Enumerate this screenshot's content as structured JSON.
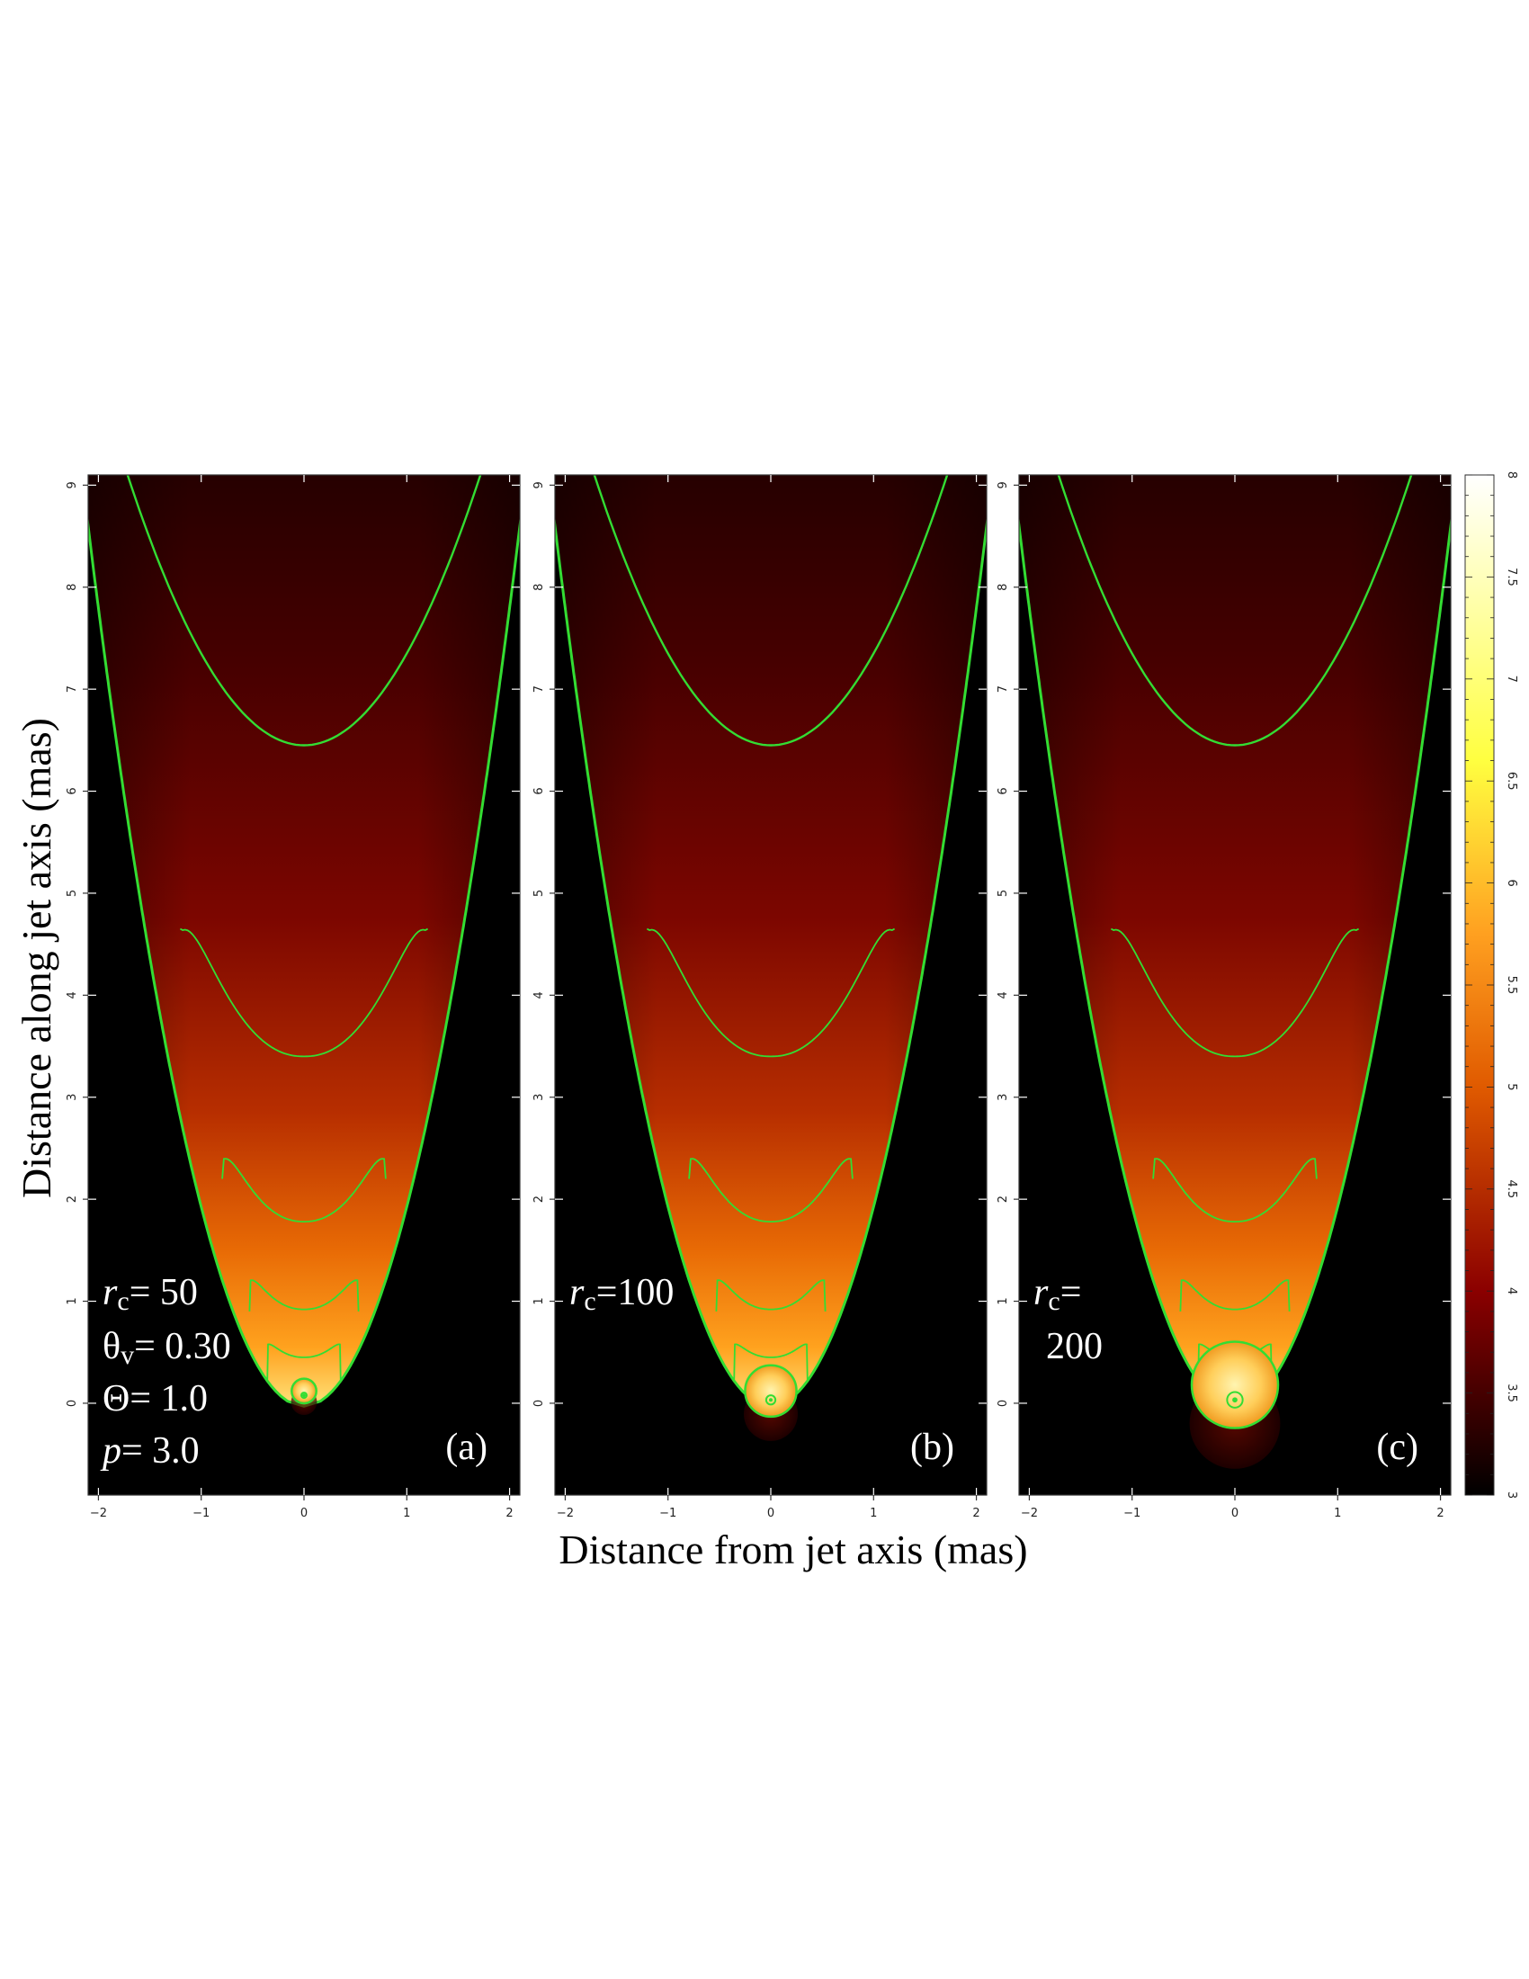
{
  "chart_data": {
    "type": "heatmap",
    "xlabel": "Distance from jet axis (mas)",
    "ylabel": "Distance along jet axis (mas)",
    "xlim": [
      -2.1,
      2.1
    ],
    "ylim": [
      -0.9,
      9.1
    ],
    "xticks": [
      "−2",
      "−1",
      "0",
      "1",
      "2"
    ],
    "yticks": [
      "0",
      "1",
      "2",
      "3",
      "4",
      "5",
      "6",
      "7",
      "8",
      "9"
    ],
    "colorbar": {
      "range": [
        3,
        8
      ],
      "ticks": [
        "3",
        "3.5",
        "4",
        "4.5",
        "5",
        "5.5",
        "6",
        "6.5",
        "7",
        "7.5",
        "8"
      ],
      "colors": [
        "#000000",
        "#8b0000",
        "#e05a00",
        "#ffa020",
        "#ffff40",
        "#ffffff"
      ]
    },
    "contour_color": "#33dd33",
    "panels": [
      {
        "tag": "(a)",
        "rc": "50",
        "blob_radius": 0.12,
        "blob_center": 0.12
      },
      {
        "tag": "(b)",
        "rc": "100",
        "blob_radius": 0.25,
        "blob_center": 0.12
      },
      {
        "tag": "(c)",
        "rc": "200",
        "blob_radius": 0.42,
        "blob_center": 0.18
      }
    ],
    "annotations": {
      "rc_prefix": "r",
      "rc_sub": "c",
      "panel_a_lines": [
        {
          "sym": "θ",
          "sub": "v",
          "val": "= 0.30"
        },
        {
          "sym": "Θ",
          "sub": "",
          "val": "= 1.0"
        },
        {
          "sym": "p",
          "sub": "",
          "val": "= 3.0"
        }
      ]
    }
  }
}
